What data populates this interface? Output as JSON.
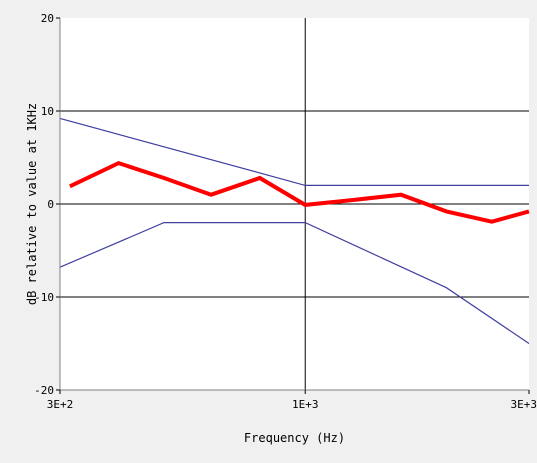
{
  "chart_data": {
    "type": "line",
    "xlabel": "Frequency (Hz)",
    "ylabel": "dB relative to value at 1KHz",
    "x_scale": "log",
    "xlim": [
      300,
      3000
    ],
    "ylim": [
      -20,
      20
    ],
    "x_ticks": [
      {
        "value": 300,
        "label": "3E+2"
      },
      {
        "value": 1000,
        "label": "1E+3"
      },
      {
        "value": 3000,
        "label": "3E+3"
      }
    ],
    "y_ticks": [
      {
        "value": 20,
        "label": "20"
      },
      {
        "value": 10,
        "label": "10"
      },
      {
        "value": 0,
        "label": "0"
      },
      {
        "value": -10,
        "label": "-10"
      },
      {
        "value": -20,
        "label": "-20"
      }
    ],
    "grid": {
      "horizontal": [
        10,
        0,
        -10
      ],
      "vertical": [
        1000
      ]
    },
    "colors": {
      "measured": "#ff0000",
      "limits": "#4040a0",
      "grid": "#000000",
      "plot_background": "#ffffff",
      "page_background": "#f0f0f0"
    },
    "series": [
      {
        "role": "upper-limit",
        "points": [
          [
            300,
            9.2
          ],
          [
            1000,
            2.0
          ],
          [
            3000,
            2.0
          ]
        ]
      },
      {
        "role": "lower-limit",
        "points": [
          [
            300,
            -6.8
          ],
          [
            500,
            -2.0
          ],
          [
            1000,
            -2.0
          ],
          [
            2000,
            -9.0
          ],
          [
            3000,
            -15.0
          ]
        ]
      },
      {
        "role": "measured",
        "points": [
          [
            315,
            1.9
          ],
          [
            400,
            4.4
          ],
          [
            500,
            2.8
          ],
          [
            630,
            1.0
          ],
          [
            800,
            2.8
          ],
          [
            1000,
            -0.1
          ],
          [
            1250,
            0.4
          ],
          [
            1600,
            1.0
          ],
          [
            2000,
            -0.8
          ],
          [
            2500,
            -1.9
          ],
          [
            3000,
            -0.8
          ]
        ]
      }
    ]
  }
}
